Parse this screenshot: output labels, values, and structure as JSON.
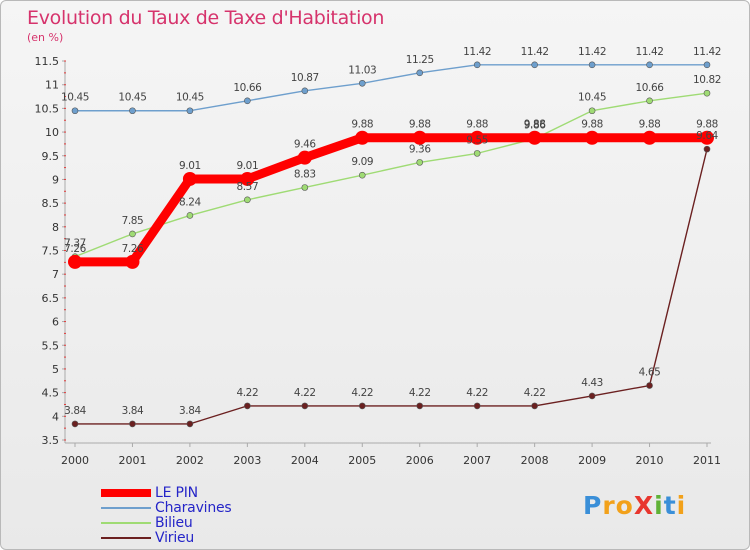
{
  "title": "Evolution du Taux de Taxe d'Habitation",
  "unit_label": "(en %)",
  "logo": {
    "text": "ProXiti",
    "letters": [
      {
        "ch": "P",
        "color": "#3a8fd8"
      },
      {
        "ch": "r",
        "color": "#f2a11a"
      },
      {
        "ch": "o",
        "color": "#f2a11a"
      },
      {
        "ch": "X",
        "color": "#e8362e"
      },
      {
        "ch": "i",
        "color": "#5fb236"
      },
      {
        "ch": "t",
        "color": "#3a8fd8"
      },
      {
        "ch": "i",
        "color": "#f2a11a"
      }
    ]
  },
  "chart_data": {
    "type": "line",
    "title": "Evolution du Taux de Taxe d'Habitation",
    "ylabel": "(en %)",
    "x": [
      "2000",
      "2001",
      "2002",
      "2003",
      "2004",
      "2005",
      "2006",
      "2007",
      "2008",
      "2009",
      "2010",
      "2011"
    ],
    "ylim": [
      3.5,
      11.5
    ],
    "yticks": [
      3.5,
      4,
      4.5,
      5,
      5.5,
      6,
      6.5,
      7,
      7.5,
      8,
      8.5,
      9,
      9.5,
      10,
      10.5,
      11,
      11.5
    ],
    "grid": false,
    "legend": "bottom-left",
    "series": [
      {
        "name": "LE PIN",
        "color": "#ff0000",
        "values": [
          7.26,
          7.26,
          9.01,
          9.01,
          9.46,
          9.88,
          9.88,
          9.88,
          9.88,
          9.88,
          9.88,
          9.88
        ]
      },
      {
        "name": "Charavines",
        "color": "#6e9fcd",
        "values": [
          10.45,
          10.45,
          10.45,
          10.66,
          10.87,
          11.03,
          11.25,
          11.42,
          11.42,
          11.42,
          11.42,
          11.42
        ]
      },
      {
        "name": "Bilieu",
        "color": "#9fdb74",
        "values": [
          7.37,
          7.85,
          8.24,
          8.57,
          8.83,
          9.09,
          9.36,
          9.55,
          9.86,
          10.45,
          10.66,
          10.82
        ]
      },
      {
        "name": "Virieu",
        "color": "#6b2020",
        "values": [
          3.84,
          3.84,
          3.84,
          4.22,
          4.22,
          4.22,
          4.22,
          4.22,
          4.22,
          4.43,
          4.65,
          9.64
        ]
      }
    ],
    "value_labels": {
      "LE PIN": [
        "7.26",
        "7.26",
        "9.01",
        "9.01",
        "9.46",
        "9.88",
        "9.88",
        "9.88",
        "9.88",
        "9.88",
        "9.88",
        "9.88"
      ],
      "Charavines": [
        "10.45",
        "10.45",
        "10.45",
        "10.66",
        "10.87",
        "11.03",
        "11.25",
        "11.42",
        "11.42",
        "11.42",
        "11.42",
        "11.42"
      ],
      "Bilieu": [
        "7.37",
        "7.85",
        "8.24",
        "8.57",
        "8.83",
        "9.09",
        "9.36",
        "9.55",
        "9.86",
        "10.45",
        "10.66",
        "10.82"
      ],
      "Virieu": [
        "3.84",
        "3.84",
        "3.84",
        "4.22",
        "4.22",
        "4.22",
        "4.22",
        "4.22",
        "4.22",
        "4.43",
        "4.65",
        "9.64"
      ]
    }
  }
}
